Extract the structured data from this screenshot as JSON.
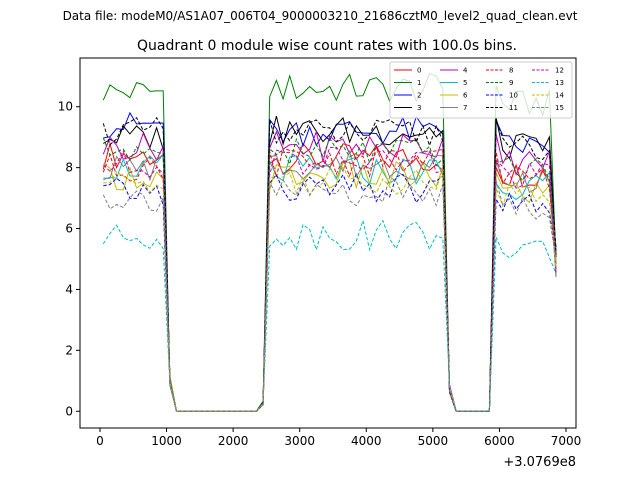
{
  "chart_data": {
    "type": "line",
    "suptitle": "Data file: modeM0/AS1A07_006T04_9000003210_21686cztM0_level2_quad_clean.evt",
    "title": "Quadrant 0 module wise count rates with 100.0s bins.",
    "xlabel": "",
    "ylabel": "",
    "x_offset_label": "+3.0769e8",
    "xlim": [
      -300,
      7150
    ],
    "ylim": [
      -0.55,
      11.6
    ],
    "xticks": [
      0,
      1000,
      2000,
      3000,
      4000,
      5000,
      6000,
      7000
    ],
    "yticks": [
      0,
      2,
      4,
      6,
      8,
      10
    ],
    "legend_position": "upper right",
    "x": [
      50,
      150,
      250,
      350,
      450,
      550,
      650,
      750,
      850,
      950,
      1050,
      1150,
      1250,
      1350,
      1450,
      1550,
      1650,
      1750,
      1850,
      1950,
      2050,
      2150,
      2250,
      2350,
      2450,
      2550,
      2650,
      2750,
      2850,
      2950,
      3050,
      3150,
      3250,
      3350,
      3450,
      3550,
      3650,
      3750,
      3850,
      3950,
      4050,
      4150,
      4250,
      4350,
      4450,
      4550,
      4650,
      4750,
      4850,
      4950,
      5050,
      5150,
      5250,
      5350,
      5450,
      5550,
      5650,
      5750,
      5850,
      5950,
      6050,
      6150,
      6250,
      6350,
      6450,
      6550,
      6650,
      6750,
      6850
    ],
    "series": [
      {
        "name": "0",
        "color": "#ff0000",
        "dash": "solid",
        "base": 8.4,
        "after": 8.3
      },
      {
        "name": "1",
        "color": "#008000",
        "dash": "solid",
        "base": 10.5,
        "after": 10.6
      },
      {
        "name": "2",
        "color": "#0000ff",
        "dash": "solid",
        "base": 9.4,
        "after": 9.2
      },
      {
        "name": "3",
        "color": "#000000",
        "dash": "solid",
        "base": 9.0,
        "after": 9.2
      },
      {
        "name": "4",
        "color": "#bf00bf",
        "dash": "solid",
        "base": 8.7,
        "after": 8.7
      },
      {
        "name": "5",
        "color": "#00bfbf",
        "dash": "solid",
        "base": 8.0,
        "after": 7.9
      },
      {
        "name": "6",
        "color": "#bfbf00",
        "dash": "solid",
        "base": 7.7,
        "after": 7.7
      },
      {
        "name": "7",
        "color": "#808080",
        "dash": "solid",
        "base": 8.0,
        "after": 8.1
      },
      {
        "name": "8",
        "color": "#ff0000",
        "dash": "dashed",
        "base": 8.0,
        "after": 8.2
      },
      {
        "name": "9",
        "color": "#008000",
        "dash": "dashed",
        "base": 8.6,
        "after": 8.5
      },
      {
        "name": "10",
        "color": "#0000ff",
        "dash": "dashed",
        "base": 7.2,
        "after": 7.3
      },
      {
        "name": "11",
        "color": "#000000",
        "dash": "dashed",
        "base": 9.2,
        "after": 9.1
      },
      {
        "name": "12",
        "color": "#bf00bf",
        "dash": "dashed",
        "base": 8.1,
        "after": 8.2
      },
      {
        "name": "13",
        "color": "#00bfbf",
        "dash": "dashed",
        "base": 5.7,
        "after": 5.8
      },
      {
        "name": "14",
        "color": "#bfbf00",
        "dash": "dashed",
        "base": 7.5,
        "after": 7.6
      },
      {
        "name": "15",
        "color": "#808080",
        "dash": "dashed",
        "base": 7.0,
        "after": 7.2
      }
    ],
    "profile": {
      "high_1": [
        50,
        950
      ],
      "drop_1": [
        1050,
        1050,
        0.15
      ],
      "zero_1": [
        1150,
        2350
      ],
      "ramp_1": [
        2450,
        2450,
        0.15
      ],
      "high_2": [
        2550,
        5150
      ],
      "drop_2": [
        5250,
        5250,
        0.3
      ],
      "zero_2": [
        5350,
        5850
      ],
      "high_3": [
        5950,
        6750
      ],
      "drop_3": [
        6850,
        6850,
        0.5
      ]
    }
  }
}
